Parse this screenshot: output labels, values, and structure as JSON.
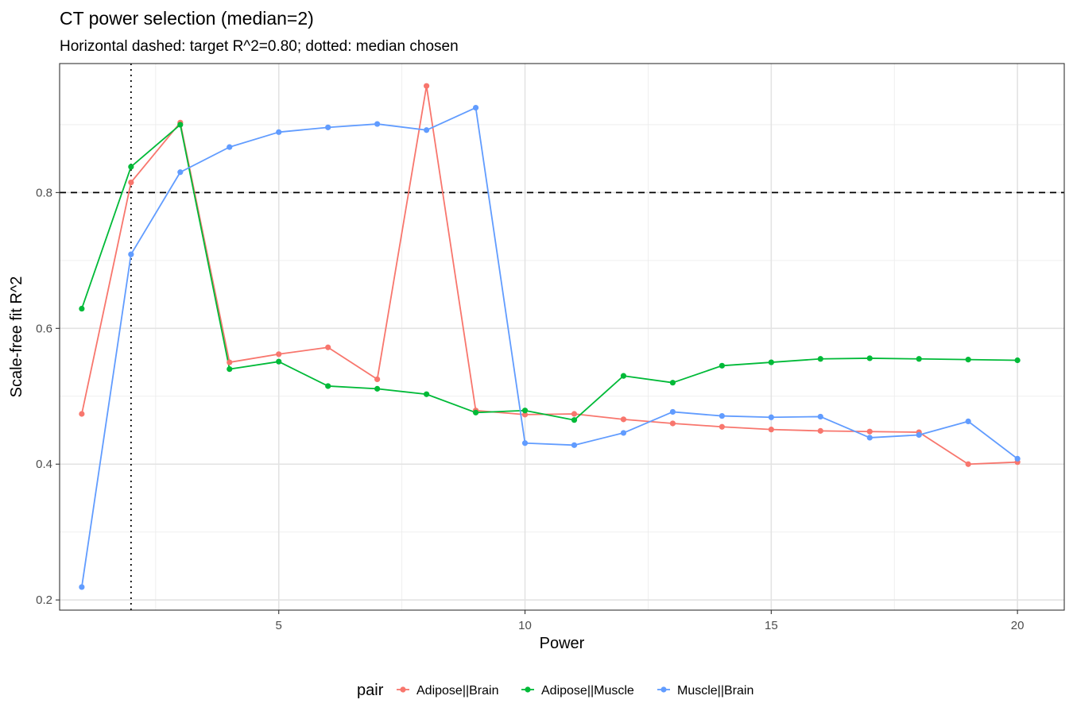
{
  "chart_data": {
    "type": "line",
    "title": "CT power selection (median=2)",
    "subtitle": "Horizontal dashed: target R^2=0.80; dotted: median chosen",
    "xlabel": "Power",
    "ylabel": "Scale-free fit R^2",
    "x": [
      1,
      2,
      3,
      4,
      5,
      6,
      7,
      8,
      9,
      10,
      11,
      12,
      13,
      14,
      15,
      16,
      17,
      18,
      19,
      20
    ],
    "xlim": [
      0.55,
      20.95
    ],
    "ylim": [
      0.185,
      0.99
    ],
    "x_ticks": [
      5,
      10,
      15,
      20
    ],
    "x_tick_labels": [
      "5",
      "10",
      "15",
      "20"
    ],
    "x_minor_ticks": [
      2.5,
      7.5,
      12.5,
      17.5
    ],
    "y_ticks": [
      0.2,
      0.4,
      0.6,
      0.8
    ],
    "y_tick_labels": [
      "0.2",
      "0.4",
      "0.6",
      "0.8"
    ],
    "y_minor_ticks": [
      0.3,
      0.5,
      0.7,
      0.9
    ],
    "hline": {
      "y": 0.8,
      "style": "dashed",
      "color": "#000000"
    },
    "vline": {
      "x": 2,
      "style": "dotted",
      "color": "#000000"
    },
    "grid": true,
    "legend": {
      "title": "pair",
      "position": "bottom"
    },
    "series": [
      {
        "name": "Adipose||Brain",
        "color": "#F8766D",
        "values": [
          0.474,
          0.815,
          0.903,
          0.55,
          0.562,
          0.572,
          0.525,
          0.957,
          0.479,
          0.473,
          0.474,
          0.466,
          0.46,
          0.455,
          0.451,
          0.449,
          0.448,
          0.447,
          0.4,
          0.403
        ]
      },
      {
        "name": "Adipose||Muscle",
        "color": "#00BA38",
        "values": [
          0.629,
          0.838,
          0.9,
          0.54,
          0.551,
          0.515,
          0.511,
          0.503,
          0.476,
          0.479,
          0.465,
          0.53,
          0.52,
          0.545,
          0.55,
          0.555,
          0.556,
          0.555,
          0.554,
          0.553
        ]
      },
      {
        "name": "Muscle||Brain",
        "color": "#619CFF",
        "values": [
          0.219,
          0.709,
          0.83,
          0.867,
          0.889,
          0.896,
          0.901,
          0.892,
          0.925,
          0.431,
          0.428,
          0.446,
          0.477,
          0.471,
          0.469,
          0.47,
          0.439,
          0.443,
          0.463,
          0.408
        ]
      }
    ]
  }
}
